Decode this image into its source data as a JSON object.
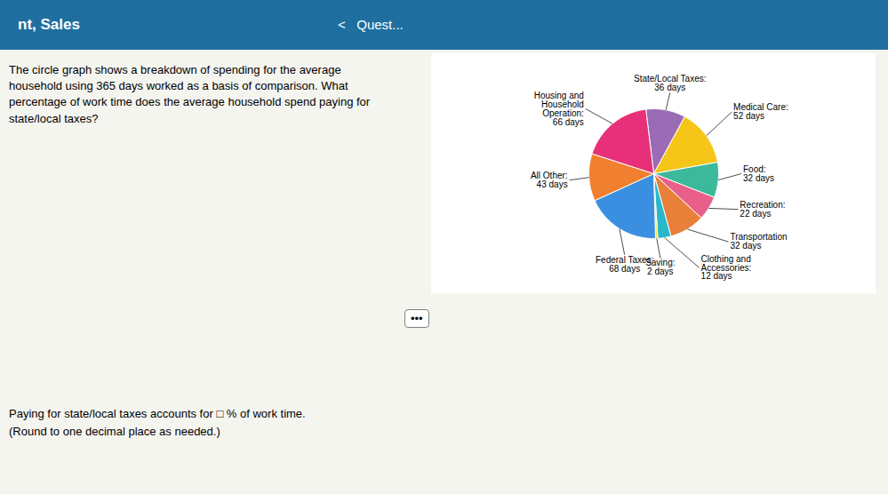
{
  "chart_data": {
    "type": "pie",
    "title": "nt, Sales",
    "annotations": [
      "<   Quest...",
      "The circle graph shows a breakdown of spending for the average\nhousehold using 365 days worked as a basis of comparison. What\npercentage of work time does the average household spend paying for\nstate/local taxes?",
      "Paying for state/local taxes accounts for □ % of work time.\n(Round to one decimal place as needed.)",
      "•••"
    ],
    "categories": [
      "State/Local Taxes:\n36 days",
      "Medical Care:\n52 days",
      "Food:\n32 days",
      "Recreation:\n22 days",
      "Transportation\n32 days",
      "Clothing and\nAccessories:\n12 days",
      "Saving:\n2 days",
      "Federal Taxes:\n68 days",
      "All Other:\n43 days",
      "Housing and\nHousehold\nOperation:\n66 days"
    ],
    "values": [
      36,
      52,
      32,
      22,
      32,
      12,
      2,
      68,
      43,
      66
    ],
    "colors": [
      "#9B6BB5",
      "#F5C518",
      "#3CB89A",
      "#E8608A",
      "#E8803A",
      "#29B8C8",
      "#F0E040",
      "#3B8FE0",
      "#F08030",
      "#E8307A"
    ]
  }
}
